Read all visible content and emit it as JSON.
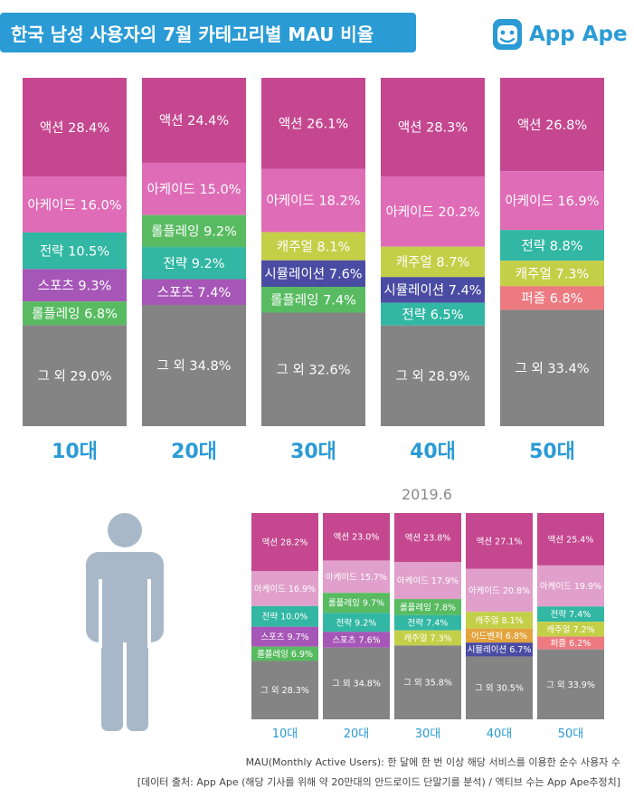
{
  "title": "한국 남성 사용자의 7월 카테고리별 MAU 비율",
  "brand": {
    "name": "App Ape",
    "title_bg": "#2a9bd5",
    "brand_color": "#2a9bd5"
  },
  "colors": {
    "액션": "#c5478f",
    "아케이드": "#df6cb6",
    "아케이드_sub": "#e0a0cb",
    "전략": "#31b7a3",
    "스포츠": "#a656b7",
    "롤플레잉": "#58bb61",
    "캐주얼": "#c4cf48",
    "시뮬레이션": "#4a4ca3",
    "퍼즐": "#ec7a80",
    "어드벤처": "#e4a33c",
    "그 외": "#848484",
    "axis_label": "#2a9bd5",
    "person": "#a8b8c8"
  },
  "chart_data": [
    {
      "type": "bar",
      "stacked": true,
      "period": "7월",
      "categories": [
        "10대",
        "20대",
        "30대",
        "40대",
        "50대"
      ],
      "columns": [
        {
          "label": "10대",
          "segments": [
            {
              "name": "액션",
              "value": 28.4,
              "text": "액션 28.4%"
            },
            {
              "name": "아케이드",
              "value": 16.0,
              "text": "아케이드 16.0%"
            },
            {
              "name": "전략",
              "value": 10.5,
              "text": "전략 10.5%"
            },
            {
              "name": "스포츠",
              "value": 9.3,
              "text": "스포츠 9.3%"
            },
            {
              "name": "롤플레잉",
              "value": 6.8,
              "text": "롤플레잉 6.8%"
            },
            {
              "name": "그 외",
              "value": 29.0,
              "text": "그 외 29.0%"
            }
          ]
        },
        {
          "label": "20대",
          "segments": [
            {
              "name": "액션",
              "value": 24.4,
              "text": "액션 24.4%"
            },
            {
              "name": "아케이드",
              "value": 15.0,
              "text": "아케이드 15.0%"
            },
            {
              "name": "롤플레잉",
              "value": 9.2,
              "text": "롤플레잉 9.2%"
            },
            {
              "name": "전략",
              "value": 9.2,
              "text": "전략 9.2%"
            },
            {
              "name": "스포츠",
              "value": 7.4,
              "text": "스포츠 7.4%"
            },
            {
              "name": "그 외",
              "value": 34.8,
              "text": "그 외 34.8%"
            }
          ]
        },
        {
          "label": "30대",
          "segments": [
            {
              "name": "액션",
              "value": 26.1,
              "text": "액션 26.1%"
            },
            {
              "name": "아케이드",
              "value": 18.2,
              "text": "아케이드 18.2%"
            },
            {
              "name": "캐주얼",
              "value": 8.1,
              "text": "캐주얼 8.1%"
            },
            {
              "name": "시뮬레이션",
              "value": 7.6,
              "text": "시뮬레이션 7.6%"
            },
            {
              "name": "롤플레잉",
              "value": 7.4,
              "text": "롤플레잉 7.4%"
            },
            {
              "name": "그 외",
              "value": 32.6,
              "text": "그 외 32.6%"
            }
          ]
        },
        {
          "label": "40대",
          "segments": [
            {
              "name": "액션",
              "value": 28.3,
              "text": "액션 28.3%"
            },
            {
              "name": "아케이드",
              "value": 20.2,
              "text": "아케이드 20.2%"
            },
            {
              "name": "캐주얼",
              "value": 8.7,
              "text": "캐주얼 8.7%"
            },
            {
              "name": "시뮬레이션",
              "value": 7.4,
              "text": "시뮬레이션 7.4%"
            },
            {
              "name": "전략",
              "value": 6.5,
              "text": "전략 6.5%"
            },
            {
              "name": "그 외",
              "value": 28.9,
              "text": "그 외 28.9%"
            }
          ]
        },
        {
          "label": "50대",
          "segments": [
            {
              "name": "액션",
              "value": 26.8,
              "text": "액션 26.8%"
            },
            {
              "name": "아케이드",
              "value": 16.9,
              "text": "아케이드 16.9%"
            },
            {
              "name": "전략",
              "value": 8.8,
              "text": "전략 8.8%"
            },
            {
              "name": "캐주얼",
              "value": 7.3,
              "text": "캐주얼 7.3%"
            },
            {
              "name": "퍼즐",
              "value": 6.8,
              "text": "퍼즐 6.8%"
            },
            {
              "name": "그 외",
              "value": 33.4,
              "text": "그 외 33.4%"
            }
          ]
        }
      ]
    },
    {
      "type": "bar",
      "stacked": true,
      "title": "2019.6",
      "categories": [
        "10대",
        "20대",
        "30대",
        "40대",
        "50대"
      ],
      "columns": [
        {
          "label": "10대",
          "segments": [
            {
              "name": "액션",
              "value": 28.2,
              "text": "액션 28.2%"
            },
            {
              "name": "아케이드",
              "value": 16.9,
              "text": "아케이드 16.9%"
            },
            {
              "name": "전략",
              "value": 10.0,
              "text": "전략 10.0%"
            },
            {
              "name": "스포츠",
              "value": 9.7,
              "text": "스포츠 9.7%"
            },
            {
              "name": "롤플레잉",
              "value": 6.9,
              "text": "롤플레잉 6.9%"
            },
            {
              "name": "그 외",
              "value": 28.3,
              "text": "그 외 28.3%"
            }
          ]
        },
        {
          "label": "20대",
          "segments": [
            {
              "name": "액션",
              "value": 23.0,
              "text": "액션 23.0%"
            },
            {
              "name": "아케이드",
              "value": 15.7,
              "text": "아케이드 15.7%"
            },
            {
              "name": "롤플레잉",
              "value": 9.7,
              "text": "롤플레잉 9.7%"
            },
            {
              "name": "전략",
              "value": 9.2,
              "text": "전략 9.2%"
            },
            {
              "name": "스포츠",
              "value": 7.6,
              "text": "스포츠 7.6%"
            },
            {
              "name": "그 외",
              "value": 34.8,
              "text": "그 외 34.8%"
            }
          ]
        },
        {
          "label": "30대",
          "segments": [
            {
              "name": "액션",
              "value": 23.8,
              "text": "액션 23.8%"
            },
            {
              "name": "아케이드",
              "value": 17.9,
              "text": "아케이드 17.9%"
            },
            {
              "name": "롤플레잉",
              "value": 7.8,
              "text": "롤플레잉 7.8%"
            },
            {
              "name": "전략",
              "value": 7.4,
              "text": "전략 7.4%"
            },
            {
              "name": "캐주얼",
              "value": 7.3,
              "text": "캐주얼 7.3%"
            },
            {
              "name": "그 외",
              "value": 35.8,
              "text": "그 외 35.8%"
            }
          ]
        },
        {
          "label": "40대",
          "segments": [
            {
              "name": "액션",
              "value": 27.1,
              "text": "액션 27.1%"
            },
            {
              "name": "아케이드",
              "value": 20.8,
              "text": "아케이드 20.8%"
            },
            {
              "name": "캐주얼",
              "value": 8.1,
              "text": "캐주얼 8.1%"
            },
            {
              "name": "어드벤처",
              "value": 6.8,
              "text": "어드벤처 6.8%"
            },
            {
              "name": "시뮬레이션",
              "value": 6.7,
              "text": "시뮬레이션 6.7%"
            },
            {
              "name": "그 외",
              "value": 30.5,
              "text": "그 외 30.5%"
            }
          ]
        },
        {
          "label": "50대",
          "segments": [
            {
              "name": "액션",
              "value": 25.4,
              "text": "액션 25.4%"
            },
            {
              "name": "아케이드",
              "value": 19.9,
              "text": "아케이드 19.9%"
            },
            {
              "name": "전략",
              "value": 7.4,
              "text": "전략 7.4%"
            },
            {
              "name": "캐주얼",
              "value": 7.2,
              "text": "캐주얼 7.2%"
            },
            {
              "name": "퍼즐",
              "value": 6.2,
              "text": "퍼즐 6.2%"
            },
            {
              "name": "그 외",
              "value": 33.9,
              "text": "그 외 33.9%"
            }
          ]
        }
      ]
    }
  ],
  "footnotes": {
    "definition": "MAU(Monthly Active Users): 한 달에 한 번 이상 해당 서비스를 이용한 순수 사용자 수",
    "source": "[데이터 출처: App Ape (해당 기사를 위해 약 20만대의 안드로이드 단말기를 분석) / 액티브 수는 App Ape추정치]"
  }
}
